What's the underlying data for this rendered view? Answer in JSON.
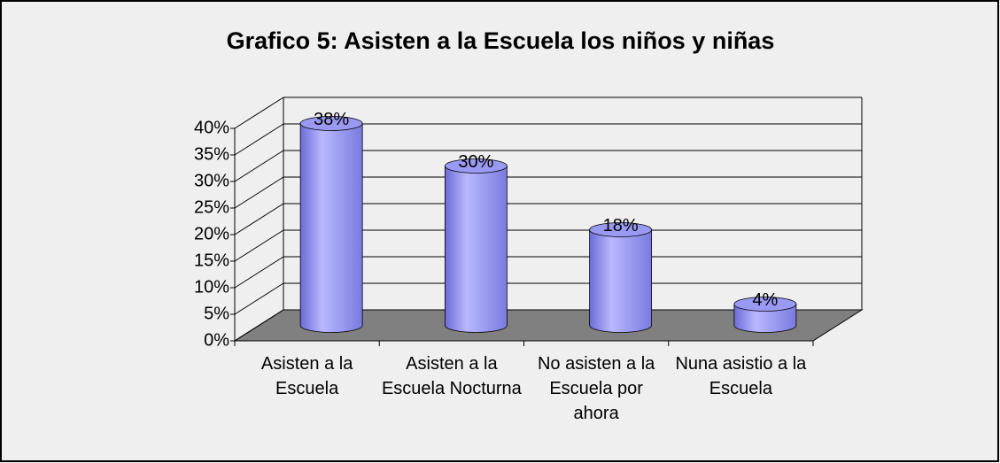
{
  "chart_data": {
    "type": "bar3d",
    "title": "Grafico 5: Asisten a la Escuela los niños y niñas",
    "categories": [
      "Asisten a la Escuela",
      "Asisten a la Escuela Nocturna",
      "No asisten a la Escuela por ahora",
      "Nuna asistio a la Escuela"
    ],
    "values": [
      38,
      30,
      18,
      4
    ],
    "value_labels": [
      "38%",
      "30%",
      "18%",
      "4%"
    ],
    "color": "#9999ff",
    "ylim": [
      0,
      40
    ],
    "yticks": [
      {
        "value": 0,
        "label": "0%"
      },
      {
        "value": 5,
        "label": "5%"
      },
      {
        "value": 10,
        "label": "10%"
      },
      {
        "value": 15,
        "label": "15%"
      },
      {
        "value": 20,
        "label": "20%"
      },
      {
        "value": 25,
        "label": "25%"
      },
      {
        "value": 30,
        "label": "30%"
      },
      {
        "value": 35,
        "label": "35%"
      },
      {
        "value": 40,
        "label": "40%"
      }
    ],
    "grid": true
  }
}
